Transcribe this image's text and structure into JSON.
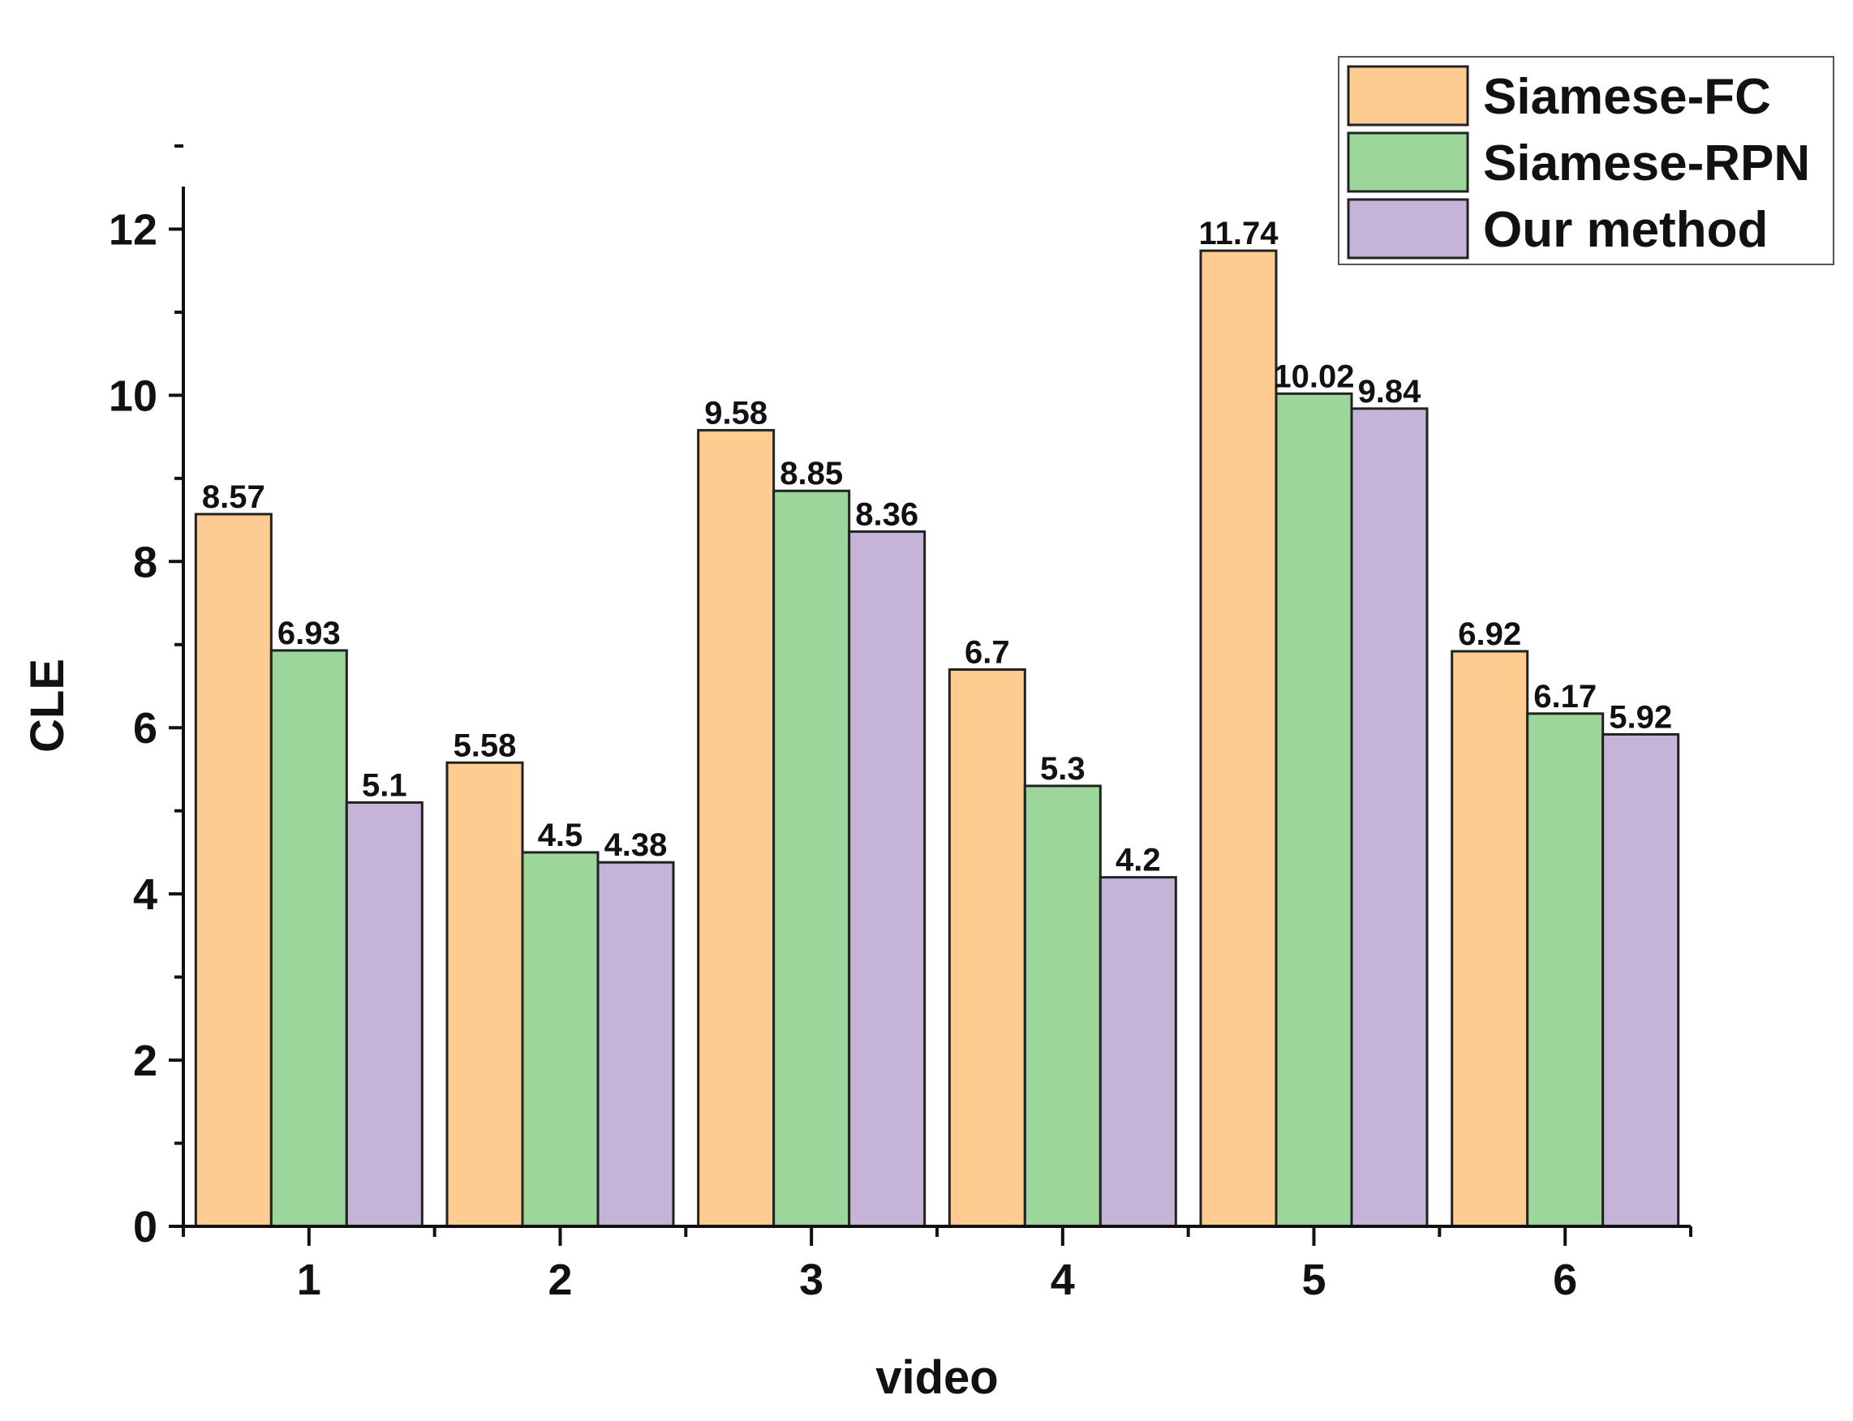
{
  "chart_data": {
    "type": "bar",
    "title": "",
    "xlabel": "video",
    "ylabel": "CLE",
    "categories": [
      "1",
      "2",
      "3",
      "4",
      "5",
      "6"
    ],
    "series": [
      {
        "name": "Siamese-FC",
        "color": "#FECC90",
        "values": [
          8.57,
          5.58,
          9.58,
          6.7,
          11.74,
          6.92
        ],
        "labels": [
          "8.57",
          "5.58",
          "9.58",
          "6.7",
          "11.74",
          "6.92"
        ]
      },
      {
        "name": "Siamese-RPN",
        "color": "#9DD69A",
        "values": [
          6.93,
          4.5,
          8.85,
          5.3,
          10.02,
          6.17
        ],
        "labels": [
          "6.93",
          "4.5",
          "8.85",
          "5.3",
          "10.02",
          "6.17"
        ]
      },
      {
        "name": "Our method",
        "color": "#C5B3D8",
        "values": [
          5.1,
          4.38,
          8.36,
          4.2,
          9.84,
          5.92
        ],
        "labels": [
          "5.1",
          "4.38",
          "8.36",
          "4.2",
          "9.84",
          "5.92"
        ]
      }
    ],
    "ylim": [
      0,
      13
    ],
    "yticks": [
      "0",
      "2",
      "4",
      "6",
      "8",
      "10",
      "12"
    ],
    "grid": false,
    "legend_position": "top-right"
  }
}
